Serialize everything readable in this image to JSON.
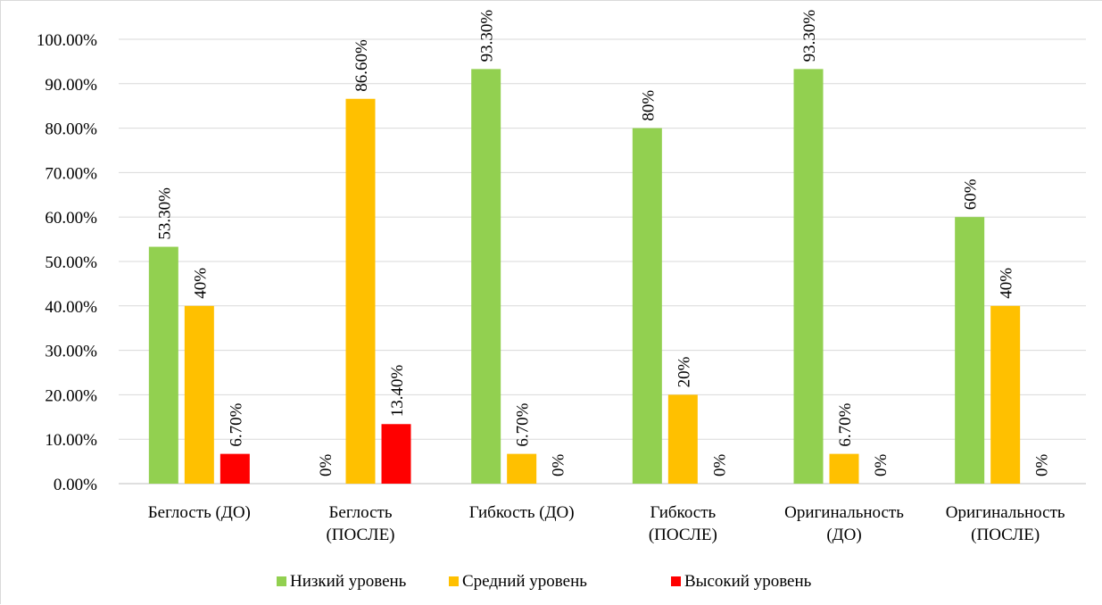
{
  "chart_data": {
    "type": "bar",
    "categories": [
      [
        "Беглость (ДО)"
      ],
      [
        "Беглость",
        "(ПОСЛЕ)"
      ],
      [
        "Гибкость (ДО)"
      ],
      [
        "Гибкость",
        "(ПОСЛЕ)"
      ],
      [
        "Оригинальность",
        "(ДО)"
      ],
      [
        "Оригинальность",
        "(ПОСЛЕ)"
      ]
    ],
    "series": [
      {
        "name": "Низкий уровень",
        "color": "#92d050",
        "values": [
          53.3,
          0,
          93.3,
          80,
          93.3,
          60
        ],
        "labels": [
          "53.30%",
          "0%",
          "93.30%",
          "80%",
          "93.30%",
          "60%"
        ]
      },
      {
        "name": "Средний уровень",
        "color": "#ffc000",
        "values": [
          40,
          86.6,
          6.7,
          20,
          6.7,
          40
        ],
        "labels": [
          "40%",
          "86.60%",
          "6.70%",
          "20%",
          "6.70%",
          "40%"
        ]
      },
      {
        "name": "Высокий уровень",
        "color": "#ff0000",
        "values": [
          6.7,
          13.4,
          0,
          0,
          0,
          0
        ],
        "labels": [
          "6.70%",
          "13.40%",
          "0%",
          "0%",
          "0%",
          "0%"
        ]
      }
    ],
    "y_ticks": [
      "0.00%",
      "10.00%",
      "20.00%",
      "30.00%",
      "40.00%",
      "50.00%",
      "60.00%",
      "70.00%",
      "80.00%",
      "90.00%",
      "100.00%"
    ],
    "ylim": [
      0,
      100
    ],
    "grid": true,
    "legend_position": "bottom",
    "gridline_color": "#d9d9d9"
  }
}
